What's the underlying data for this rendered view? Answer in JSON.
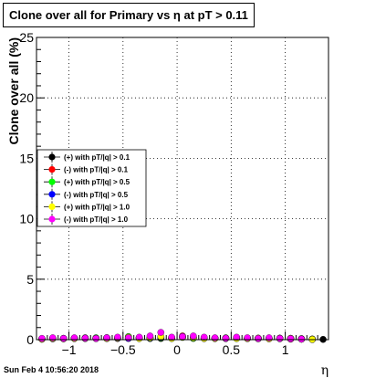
{
  "chart_data": {
    "type": "scatter",
    "title": "Clone  over all for Primary vs   η at pT > 0.11",
    "xlabel": "η",
    "ylabel": "Clone  over all (%)",
    "xlim": [
      -1.3,
      1.4
    ],
    "ylim": [
      0,
      25
    ],
    "x_ticks": [
      -1,
      -0.5,
      0,
      0.5,
      1
    ],
    "x_tick_labels": [
      "−1",
      "−0.5",
      "0",
      "0.5",
      "1"
    ],
    "y_ticks": [
      0,
      5,
      10,
      15,
      20,
      25
    ],
    "y_tick_labels": [
      "0",
      "5",
      "10",
      "15",
      "20",
      "25"
    ],
    "grid": true,
    "legend_position": "left-middle",
    "series": [
      {
        "name": "(+) with pT/|q| > 0.1",
        "color": "#000000",
        "x": [
          -1.25,
          -1.15,
          -1.05,
          -0.95,
          -0.85,
          -0.75,
          -0.65,
          -0.55,
          -0.45,
          -0.35,
          -0.25,
          -0.15,
          -0.05,
          0.05,
          0.15,
          0.25,
          0.35,
          0.45,
          0.55,
          0.65,
          0.75,
          0.85,
          0.95,
          1.05,
          1.15,
          1.25,
          1.35
        ],
        "y": [
          0.05,
          0.1,
          0.08,
          0.1,
          0.15,
          0.12,
          0.1,
          0.15,
          0.2,
          0.1,
          0.15,
          0.1,
          0.12,
          0.2,
          0.15,
          0.1,
          0.12,
          0.1,
          0.15,
          0.1,
          0.08,
          0.1,
          0.12,
          0.1,
          0.08,
          0.05,
          0.02
        ]
      },
      {
        "name": "(-) with pT/|q| > 0.1",
        "color": "#ff0000",
        "x": [
          -1.25,
          -1.15,
          -1.05,
          -0.95,
          -0.85,
          -0.75,
          -0.65,
          -0.55,
          -0.45,
          -0.35,
          -0.25,
          -0.15,
          -0.05,
          0.05,
          0.15,
          0.25,
          0.35,
          0.45,
          0.55,
          0.65,
          0.75,
          0.85,
          0.95,
          1.05,
          1.15,
          1.25
        ],
        "y": [
          0.05,
          0.08,
          0.1,
          0.12,
          0.1,
          0.1,
          0.15,
          0.1,
          0.12,
          0.15,
          0.1,
          0.2,
          0.15,
          0.3,
          0.2,
          0.15,
          0.1,
          0.1,
          0.12,
          0.1,
          0.1,
          0.08,
          0.1,
          0.05,
          0.05,
          0.03
        ]
      },
      {
        "name": "(+) with pT/|q| > 0.5",
        "color": "#00ff00",
        "x": [
          -1.25,
          -1.15,
          -1.05,
          -0.95,
          -0.85,
          -0.75,
          -0.65,
          -0.55,
          -0.45,
          -0.35,
          -0.25,
          -0.15,
          -0.05,
          0.05,
          0.15,
          0.25,
          0.35,
          0.45,
          0.55,
          0.65,
          0.75,
          0.85,
          0.95,
          1.05,
          1.15,
          1.25
        ],
        "y": [
          0.05,
          0.1,
          0.08,
          0.12,
          0.1,
          0.15,
          0.1,
          0.12,
          0.25,
          0.15,
          0.1,
          0.15,
          0.1,
          0.2,
          0.1,
          0.12,
          0.1,
          0.15,
          0.1,
          0.12,
          0.1,
          0.1,
          0.08,
          0.1,
          0.05,
          0.02
        ]
      },
      {
        "name": "(-) with pT/|q| > 0.5",
        "color": "#0000ff",
        "x": [
          -1.25,
          -1.15,
          -1.05,
          -0.95,
          -0.85,
          -0.75,
          -0.65,
          -0.55,
          -0.45,
          -0.35,
          -0.25,
          -0.15,
          -0.05,
          0.05,
          0.15,
          0.25,
          0.35,
          0.45,
          0.55,
          0.65,
          0.75,
          0.85,
          0.95,
          1.05,
          1.15,
          1.25
        ],
        "y": [
          0.05,
          0.08,
          0.1,
          0.1,
          0.12,
          0.1,
          0.15,
          0.12,
          0.1,
          0.15,
          0.12,
          0.2,
          0.15,
          0.25,
          0.15,
          0.1,
          0.12,
          0.1,
          0.15,
          0.1,
          0.12,
          0.1,
          0.1,
          0.08,
          0.05,
          0.02
        ]
      },
      {
        "name": "(+) with pT/|q| > 1.0",
        "color": "#ffff00",
        "x": [
          -1.25,
          -1.15,
          -1.05,
          -0.95,
          -0.85,
          -0.75,
          -0.65,
          -0.55,
          -0.45,
          -0.35,
          -0.25,
          -0.15,
          -0.05,
          0.05,
          0.15,
          0.25,
          0.35,
          0.45,
          0.55,
          0.65,
          0.75,
          0.85,
          0.95,
          1.05,
          1.15,
          1.25
        ],
        "y": [
          0.05,
          0.1,
          0.08,
          0.1,
          0.12,
          0.1,
          0.1,
          0.15,
          0.2,
          0.1,
          0.15,
          0.25,
          0.1,
          0.2,
          0.15,
          0.1,
          0.1,
          0.12,
          0.1,
          0.1,
          0.12,
          0.08,
          0.1,
          0.1,
          0.05,
          0.02
        ]
      },
      {
        "name": "(-) with pT/|q| > 1.0",
        "color": "#ff00ff",
        "x": [
          -1.25,
          -1.15,
          -1.05,
          -0.95,
          -0.85,
          -0.75,
          -0.65,
          -0.55,
          -0.45,
          -0.35,
          -0.25,
          -0.15,
          -0.05,
          0.05,
          0.15,
          0.25,
          0.35,
          0.45,
          0.55,
          0.65,
          0.75,
          0.85,
          0.95,
          1.05,
          1.15
        ],
        "y": [
          0.1,
          0.15,
          0.1,
          0.15,
          0.12,
          0.1,
          0.15,
          0.2,
          0.15,
          0.2,
          0.3,
          0.6,
          0.2,
          0.25,
          0.3,
          0.2,
          0.15,
          0.12,
          0.2,
          0.15,
          0.1,
          0.15,
          0.1,
          0.08,
          0.05
        ]
      }
    ]
  },
  "footer": {
    "timestamp": "Sun Feb  4 10:56:20 2018"
  }
}
